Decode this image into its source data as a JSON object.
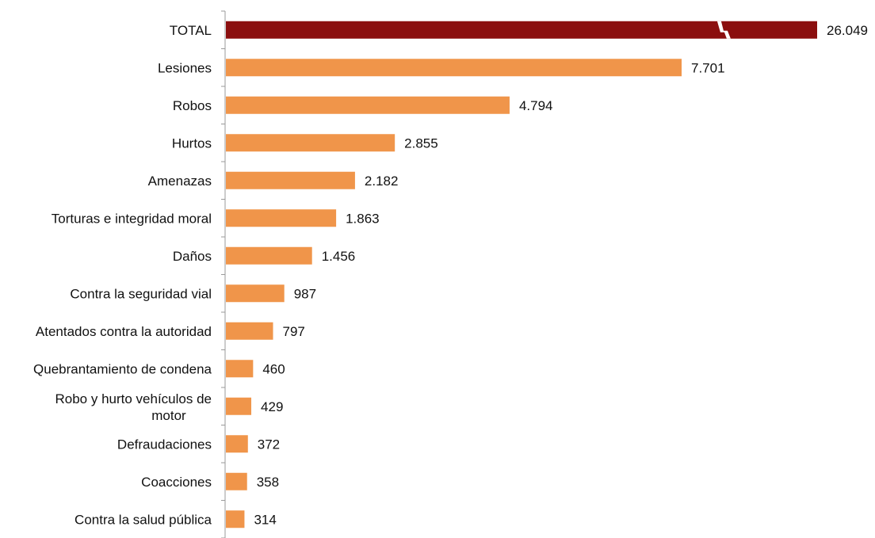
{
  "chart_data": {
    "type": "bar",
    "orientation": "horizontal",
    "categories": [
      "TOTAL",
      "Lesiones",
      "Robos",
      "Hurtos",
      "Amenazas",
      "Torturas e integridad moral",
      "Daños",
      "Contra la seguridad vial",
      "Atentados contra la autoridad",
      "Quebrantamiento de condena",
      "Robo y hurto vehículos de motor",
      "Defraudaciones",
      "Coacciones",
      "Contra la salud pública"
    ],
    "values": [
      26049,
      7701,
      4794,
      2855,
      2182,
      1863,
      1456,
      987,
      797,
      460,
      429,
      372,
      358,
      314
    ],
    "value_labels": [
      "26.049",
      "7.701",
      "4.794",
      "2.855",
      "2.182",
      "1.863",
      "1.456",
      "987",
      "797",
      "460",
      "429",
      "372",
      "358",
      "314"
    ],
    "axis_break_on": "TOTAL",
    "grid": false,
    "colors": {
      "total_bar": "#8b0e0e",
      "bar": "#f0954a",
      "axis": "#9a9a9a"
    }
  }
}
